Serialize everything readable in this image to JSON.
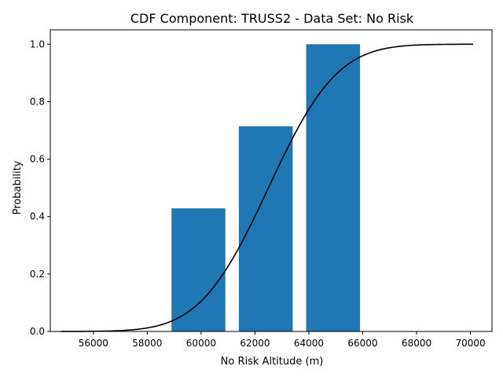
{
  "chart_data": {
    "type": "bar",
    "title": "CDF Component: TRUSS2 - Data Set: No Risk",
    "xlabel": "No Risk Altitude (m)",
    "ylabel": "Probability",
    "xlim": [
      54400,
      70800
    ],
    "ylim": [
      0.0,
      1.05
    ],
    "x_ticks": [
      {
        "value": 56000,
        "label": "56000"
      },
      {
        "value": 58000,
        "label": "58000"
      },
      {
        "value": 60000,
        "label": "60000"
      },
      {
        "value": 62000,
        "label": "62000"
      },
      {
        "value": 64000,
        "label": "64000"
      },
      {
        "value": 66000,
        "label": "66000"
      },
      {
        "value": 68000,
        "label": "68000"
      },
      {
        "value": 70000,
        "label": "70000"
      }
    ],
    "y_ticks": [
      {
        "value": 0.0,
        "label": "0.0"
      },
      {
        "value": 0.2,
        "label": "0.2"
      },
      {
        "value": 0.4,
        "label": "0.4"
      },
      {
        "value": 0.6,
        "label": "0.6"
      },
      {
        "value": 0.8,
        "label": "0.8"
      },
      {
        "value": 1.0,
        "label": "1.0"
      }
    ],
    "bars": [
      {
        "x0": 58900,
        "x1": 60900,
        "value": 0.4286
      },
      {
        "x0": 61400,
        "x1": 63400,
        "value": 0.7143
      },
      {
        "x0": 63900,
        "x1": 65900,
        "value": 1.0
      }
    ],
    "curve": {
      "type": "normal_cdf",
      "mean": 62500,
      "std": 2000,
      "x_start": 54800,
      "x_end": 70100
    },
    "grid": false,
    "colors": {
      "bar": "#1f77b4",
      "curve": "#000000",
      "axes": "#000000"
    }
  }
}
